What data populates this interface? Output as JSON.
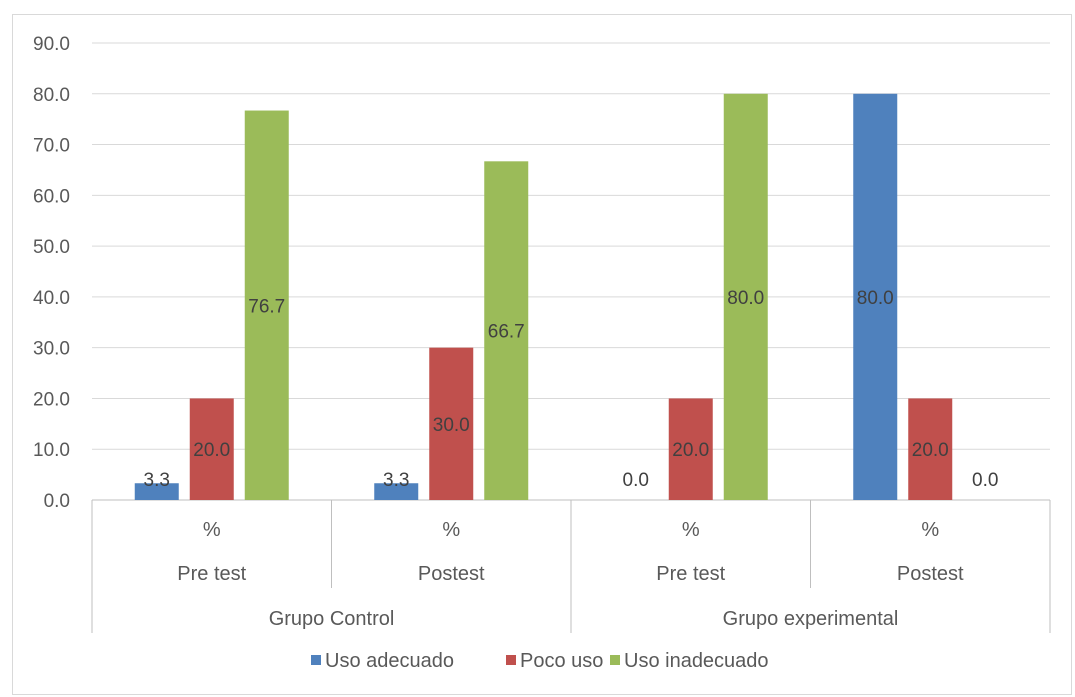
{
  "chart_data": {
    "type": "bar",
    "ylim": [
      0,
      90
    ],
    "ystep": 10,
    "grid": true,
    "legend_position": "bottom",
    "groups": [
      {
        "name": "Grupo Control",
        "subgroups": [
          {
            "name": "Pre test",
            "measure": "%"
          },
          {
            "name": "Postest",
            "measure": "%"
          }
        ]
      },
      {
        "name": "Grupo experimental",
        "subgroups": [
          {
            "name": "Pre test",
            "measure": "%"
          },
          {
            "name": "Postest",
            "measure": "%"
          }
        ]
      }
    ],
    "series": [
      {
        "name": "Uso adecuado",
        "color": "#4f81bd",
        "values": [
          3.3,
          3.3,
          0.0,
          80.0
        ]
      },
      {
        "name": "Poco uso",
        "color": "#c0504d",
        "values": [
          20.0,
          30.0,
          20.0,
          20.0
        ]
      },
      {
        "name": "Uso inadecuado",
        "color": "#9bbb59",
        "values": [
          76.7,
          66.7,
          80.0,
          0.0
        ]
      }
    ]
  }
}
